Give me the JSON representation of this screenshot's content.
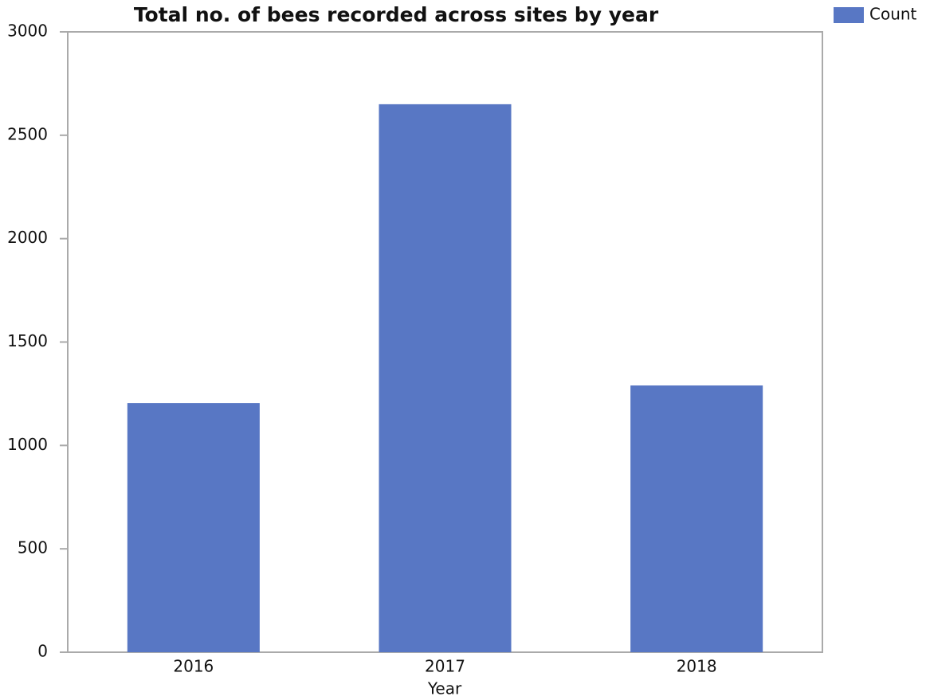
{
  "chart_data": {
    "type": "bar",
    "title": "Total no. of bees recorded across sites by year",
    "x_label": "Year",
    "categories": [
      "2016",
      "2017",
      "2018"
    ],
    "series": [
      {
        "name": "Count",
        "color": "#5877c4",
        "values": [
          1205,
          2650,
          1290
        ]
      }
    ],
    "ylim": [
      0,
      3000
    ],
    "yticks": [
      0,
      500,
      1000,
      1500,
      2000,
      2500,
      3000
    ],
    "grid": false,
    "legend": "top-right"
  }
}
